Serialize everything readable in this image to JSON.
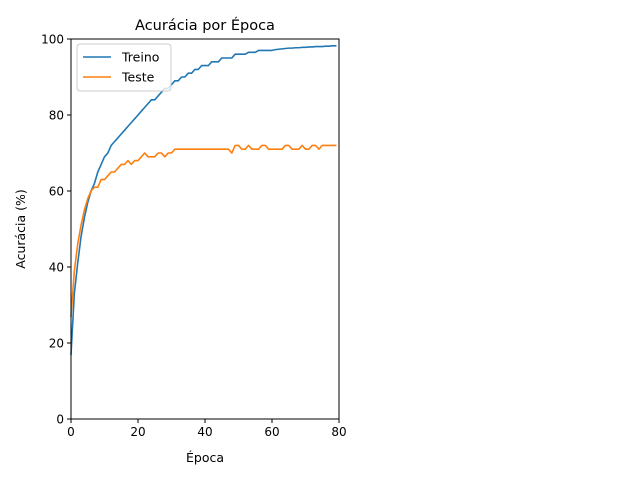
{
  "chart_data": {
    "type": "line",
    "title": "Acurácia por Época",
    "xlabel": "Época",
    "ylabel": "Acurácia (%)",
    "xlim": [
      0,
      80
    ],
    "ylim": [
      0,
      100
    ],
    "xticks": [
      0,
      20,
      40,
      60,
      80
    ],
    "yticks": [
      0,
      20,
      40,
      60,
      80,
      100
    ],
    "grid": false,
    "legend_position": "top-left",
    "series": [
      {
        "name": "Treino",
        "color": "#1f77b4",
        "x": [
          0,
          1,
          2,
          3,
          4,
          5,
          6,
          7,
          8,
          9,
          10,
          11,
          12,
          13,
          14,
          15,
          16,
          17,
          18,
          19,
          20,
          21,
          22,
          23,
          24,
          25,
          26,
          27,
          28,
          29,
          30,
          31,
          32,
          33,
          34,
          35,
          36,
          37,
          38,
          39,
          40,
          41,
          42,
          43,
          44,
          45,
          46,
          47,
          48,
          49,
          50,
          51,
          52,
          53,
          54,
          55,
          56,
          57,
          58,
          59,
          60,
          61,
          62,
          63,
          64,
          65,
          66,
          67,
          68,
          69,
          70,
          71,
          72,
          73,
          74,
          75,
          76,
          77,
          78,
          79
        ],
        "y": [
          17,
          33,
          41,
          48,
          53,
          57,
          60,
          62,
          65,
          67,
          69,
          70,
          72,
          73,
          74,
          75,
          76,
          77,
          78,
          79,
          80,
          81,
          82,
          83,
          84,
          84,
          85,
          86,
          87,
          87,
          88,
          89,
          89,
          90,
          90,
          91,
          91,
          92,
          92,
          93,
          93,
          93,
          94,
          94,
          94,
          95,
          95,
          95,
          95,
          96,
          96,
          96,
          96,
          96.5,
          96.5,
          96.5,
          97,
          97,
          97,
          97,
          97,
          97.2,
          97.3,
          97.4,
          97.5,
          97.6,
          97.6,
          97.7,
          97.7,
          97.8,
          97.8,
          97.9,
          97.9,
          98,
          98,
          98,
          98.1,
          98.1,
          98.2,
          98.2
        ]
      },
      {
        "name": "Teste",
        "color": "#ff7f0e",
        "x": [
          0,
          1,
          2,
          3,
          4,
          5,
          6,
          7,
          8,
          9,
          10,
          11,
          12,
          13,
          14,
          15,
          16,
          17,
          18,
          19,
          20,
          21,
          22,
          23,
          24,
          25,
          26,
          27,
          28,
          29,
          30,
          31,
          32,
          33,
          34,
          35,
          36,
          37,
          38,
          39,
          40,
          41,
          42,
          43,
          44,
          45,
          46,
          47,
          48,
          49,
          50,
          51,
          52,
          53,
          54,
          55,
          56,
          57,
          58,
          59,
          60,
          61,
          62,
          63,
          64,
          65,
          66,
          67,
          68,
          69,
          70,
          71,
          72,
          73,
          74,
          75,
          76,
          77,
          78,
          79
        ],
        "y": [
          27,
          39,
          46,
          51,
          55,
          58,
          60,
          61,
          61,
          63,
          63,
          64,
          65,
          65,
          66,
          67,
          67,
          68,
          67,
          68,
          68,
          69,
          70,
          69,
          69,
          69,
          70,
          70,
          69,
          70,
          70,
          71,
          71,
          71,
          71,
          71,
          71,
          71,
          71,
          71,
          71,
          71,
          71,
          71,
          71,
          71,
          71,
          71,
          70,
          72,
          72,
          71,
          71,
          72,
          71,
          71,
          71,
          72,
          72,
          71,
          71,
          71,
          71,
          71,
          72,
          72,
          71,
          71,
          71,
          72,
          71,
          71,
          72,
          72,
          71,
          72,
          72,
          72,
          72,
          72
        ]
      }
    ]
  }
}
